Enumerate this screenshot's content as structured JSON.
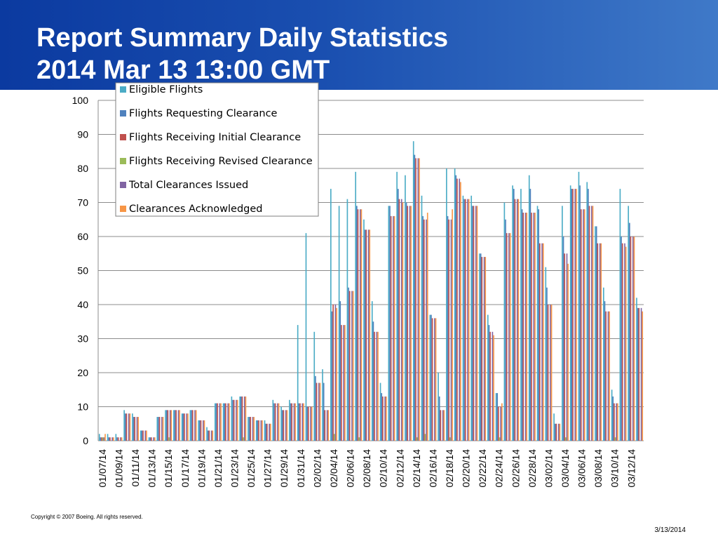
{
  "slide": {
    "title_line1": "Report Summary Daily Statistics",
    "title_line2": "2014 Mar 13 13:00 GMT",
    "copyright": "Copyright © 2007 Boeing. All rights reserved.",
    "date": "3/13/2014"
  },
  "chart_data": {
    "type": "bar",
    "title": "",
    "xlabel": "",
    "ylabel": "",
    "ylim": [
      0,
      100
    ],
    "yticks": [
      0,
      10,
      20,
      30,
      40,
      50,
      60,
      70,
      80,
      90,
      100
    ],
    "grid": true,
    "legend_position": "top-left",
    "categories": [
      "01/07/14",
      "01/08/14",
      "01/09/14",
      "01/10/14",
      "01/11/14",
      "01/12/14",
      "01/13/14",
      "01/14/14",
      "01/15/14",
      "01/16/14",
      "01/17/14",
      "01/18/14",
      "01/19/14",
      "01/20/14",
      "01/21/14",
      "01/22/14",
      "01/23/14",
      "01/24/14",
      "01/25/14",
      "01/26/14",
      "01/27/14",
      "01/28/14",
      "01/29/14",
      "01/30/14",
      "01/31/14",
      "02/01/14",
      "02/02/14",
      "02/03/14",
      "02/04/14",
      "02/05/14",
      "02/06/14",
      "02/07/14",
      "02/08/14",
      "02/09/14",
      "02/10/14",
      "02/11/14",
      "02/12/14",
      "02/13/14",
      "02/14/14",
      "02/15/14",
      "02/16/14",
      "02/17/14",
      "02/18/14",
      "02/19/14",
      "02/20/14",
      "02/21/14",
      "02/22/14",
      "02/23/14",
      "02/24/14",
      "02/25/14",
      "02/26/14",
      "02/27/14",
      "02/28/14",
      "03/01/14",
      "03/02/14",
      "03/03/14",
      "03/04/14",
      "03/05/14",
      "03/06/14",
      "03/07/14",
      "03/08/14",
      "03/09/14",
      "03/10/14",
      "03/11/14",
      "03/12/14",
      "03/13/14"
    ],
    "x_tick_labels": [
      "01/07/14",
      "01/09/14",
      "01/11/14",
      "01/13/14",
      "01/15/14",
      "01/17/14",
      "01/19/14",
      "01/21/14",
      "01/23/14",
      "01/25/14",
      "01/27/14",
      "01/29/14",
      "01/31/14",
      "02/02/14",
      "02/04/14",
      "02/06/14",
      "02/08/14",
      "02/10/14",
      "02/12/14",
      "02/14/14",
      "02/16/14",
      "02/18/14",
      "02/20/14",
      "02/22/14",
      "02/24/14",
      "02/26/14",
      "02/28/14",
      "03/02/14",
      "03/04/14",
      "03/06/14",
      "03/08/14",
      "03/10/14",
      "03/12/14"
    ],
    "series": [
      {
        "name": "Eligible Flights",
        "color": "#4bacc6",
        "values": [
          2,
          2,
          2,
          9,
          8,
          3,
          1,
          7,
          9,
          9,
          8,
          9,
          6,
          4,
          11,
          11,
          13,
          13,
          7,
          6,
          6,
          12,
          10,
          12,
          34,
          61,
          32,
          21,
          74,
          69,
          71,
          79,
          65,
          41,
          17,
          69,
          79,
          78,
          88,
          72,
          37,
          20,
          80,
          80,
          72,
          72,
          55,
          37,
          14,
          70,
          75,
          74,
          78,
          69,
          51,
          8,
          69,
          75,
          79,
          76,
          63,
          45,
          15,
          74,
          69,
          42
        ]
      },
      {
        "name": "Flights Requesting Clearance",
        "color": "#4f81bd",
        "values": [
          1,
          1,
          1,
          8,
          7,
          3,
          1,
          7,
          9,
          9,
          8,
          9,
          6,
          3,
          11,
          11,
          12,
          13,
          7,
          6,
          5,
          11,
          9,
          11,
          11,
          10,
          19,
          17,
          38,
          41,
          45,
          69,
          62,
          35,
          14,
          69,
          74,
          70,
          84,
          66,
          37,
          13,
          66,
          78,
          71,
          69,
          55,
          34,
          14,
          65,
          74,
          68,
          74,
          68,
          45,
          5,
          60,
          74,
          75,
          74,
          63,
          41,
          13,
          60,
          64,
          39
        ]
      },
      {
        "name": "Flights Receiving Initial Clearance",
        "color": "#c0504d",
        "values": [
          1,
          1,
          1,
          8,
          7,
          3,
          1,
          7,
          9,
          9,
          8,
          9,
          6,
          3,
          11,
          11,
          12,
          13,
          7,
          6,
          5,
          11,
          9,
          11,
          11,
          10,
          17,
          9,
          40,
          34,
          44,
          68,
          62,
          32,
          13,
          66,
          71,
          69,
          83,
          65,
          36,
          9,
          65,
          77,
          71,
          69,
          54,
          32,
          10,
          61,
          71,
          67,
          67,
          58,
          40,
          5,
          55,
          74,
          68,
          69,
          58,
          38,
          11,
          58,
          60,
          39
        ]
      },
      {
        "name": "Flights Receiving Revised Clearance",
        "color": "#9bbb59",
        "values": [
          1,
          0,
          0,
          0,
          0,
          0,
          0,
          0,
          1,
          0,
          0,
          0,
          0,
          0,
          0,
          0,
          0,
          1,
          0,
          0,
          0,
          0,
          0,
          0,
          0,
          0,
          0,
          0,
          2,
          0,
          0,
          1,
          0,
          0,
          0,
          0,
          0,
          0,
          1,
          2,
          0,
          0,
          1,
          0,
          0,
          0,
          0,
          0,
          1,
          0,
          0,
          0,
          0,
          0,
          0,
          0,
          1,
          0,
          0,
          0,
          0,
          0,
          1,
          0,
          0,
          0
        ]
      },
      {
        "name": "Total Clearances Issued",
        "color": "#8064a2",
        "values": [
          1,
          1,
          1,
          8,
          7,
          3,
          1,
          7,
          9,
          9,
          8,
          9,
          6,
          3,
          11,
          11,
          12,
          13,
          7,
          6,
          5,
          11,
          9,
          11,
          11,
          10,
          17,
          9,
          40,
          34,
          44,
          68,
          62,
          32,
          13,
          66,
          71,
          69,
          83,
          65,
          36,
          9,
          65,
          77,
          71,
          69,
          54,
          32,
          10,
          61,
          71,
          67,
          67,
          58,
          40,
          5,
          55,
          74,
          68,
          69,
          58,
          38,
          11,
          58,
          60,
          39
        ]
      },
      {
        "name": "Clearances Acknowledged",
        "color": "#f79646",
        "values": [
          2,
          1,
          1,
          8,
          7,
          3,
          1,
          7,
          9,
          9,
          8,
          9,
          6,
          3,
          11,
          11,
          12,
          13,
          7,
          6,
          5,
          11,
          9,
          11,
          11,
          10,
          17,
          9,
          39,
          34,
          44,
          68,
          62,
          32,
          13,
          66,
          70,
          69,
          83,
          67,
          36,
          9,
          68,
          76,
          71,
          69,
          54,
          31,
          11,
          61,
          71,
          67,
          67,
          58,
          40,
          5,
          52,
          74,
          68,
          69,
          58,
          38,
          11,
          57,
          60,
          38
        ]
      }
    ]
  }
}
